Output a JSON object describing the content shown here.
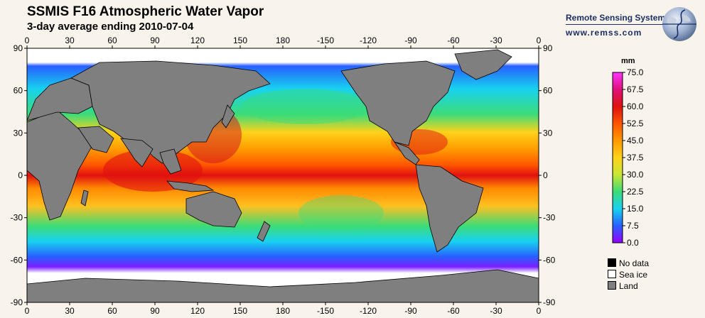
{
  "header": {
    "title": "SSMIS F16 Atmospheric Water Vapor",
    "subtitle": "3-day average ending 2010-07-04"
  },
  "brand": {
    "name": "Remote Sensing Systems",
    "url": "www.remss.com",
    "logo_icon": "globe-logo-icon"
  },
  "map": {
    "lon_ticks": [
      "0",
      "30",
      "60",
      "90",
      "120",
      "150",
      "180",
      "-150",
      "-120",
      "-90",
      "-60",
      "-30",
      "0"
    ],
    "lat_ticks": [
      "90",
      "60",
      "30",
      "0",
      "-30",
      "-60",
      "-90"
    ],
    "colors": {
      "land": "#7f7f7f",
      "sea_ice": "#ffffff",
      "coast": "#000000"
    }
  },
  "colorbar": {
    "unit": "mm",
    "labels": [
      "75.0",
      "67.5",
      "60.0",
      "52.5",
      "45.0",
      "37.5",
      "30.0",
      "22.5",
      "15.0",
      "7.5",
      "0.0"
    ],
    "colors": [
      "#ff33ff",
      "#e0107a",
      "#e01010",
      "#ff5500",
      "#ff9900",
      "#ffd21a",
      "#c8e632",
      "#3cdc78",
      "#18d2f0",
      "#2860ff",
      "#9600ff"
    ]
  },
  "legend": {
    "items": [
      {
        "label": "No data",
        "color": "#000000"
      },
      {
        "label": "Sea ice",
        "color": "#ffffff"
      },
      {
        "label": "Land",
        "color": "#7f7f7f"
      }
    ]
  }
}
